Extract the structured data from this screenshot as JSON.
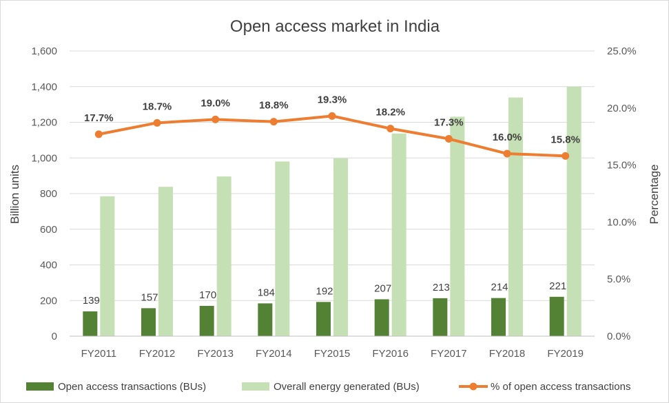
{
  "chart_data": {
    "type": "bar",
    "title": "Open access market in India",
    "categories": [
      "FY2011",
      "FY2012",
      "FY2013",
      "FY2014",
      "FY2015",
      "FY2016",
      "FY2017",
      "FY2018",
      "FY2019"
    ],
    "series": [
      {
        "name": "Open access transactions (BUs)",
        "type": "bar",
        "axis": "left",
        "color": "#548235",
        "values": [
          139,
          157,
          170,
          184,
          192,
          207,
          213,
          214,
          221
        ],
        "data_labels": [
          "139",
          "157",
          "170",
          "184",
          "192",
          "207",
          "213",
          "214",
          "221"
        ]
      },
      {
        "name": "Overall energy generated (BUs)",
        "type": "bar",
        "axis": "left",
        "color": "#c5e0b4",
        "values": [
          785,
          838,
          896,
          980,
          998,
          1137,
          1231,
          1339,
          1400
        ]
      },
      {
        "name": "% of open access transactions",
        "type": "line",
        "axis": "right",
        "color": "#ed7d31",
        "values": [
          17.7,
          18.7,
          19.0,
          18.8,
          19.3,
          18.2,
          17.3,
          16.0,
          15.8
        ],
        "data_labels": [
          "17.7%",
          "18.7%",
          "19.0%",
          "18.8%",
          "19.3%",
          "18.2%",
          "17.3%",
          "16.0%",
          "15.8%"
        ]
      }
    ],
    "ylabel": "Billion units",
    "ylim": [
      0,
      1600
    ],
    "yticks": [
      "0",
      "200",
      "400",
      "600",
      "800",
      "1,000",
      "1,200",
      "1,400",
      "1,600"
    ],
    "y2label": "Percentage",
    "y2lim": [
      0,
      25
    ],
    "y2ticks": [
      "0.0%",
      "5.0%",
      "10.0%",
      "15.0%",
      "20.0%",
      "25.0%"
    ],
    "grid": true,
    "legend_position": "bottom"
  }
}
